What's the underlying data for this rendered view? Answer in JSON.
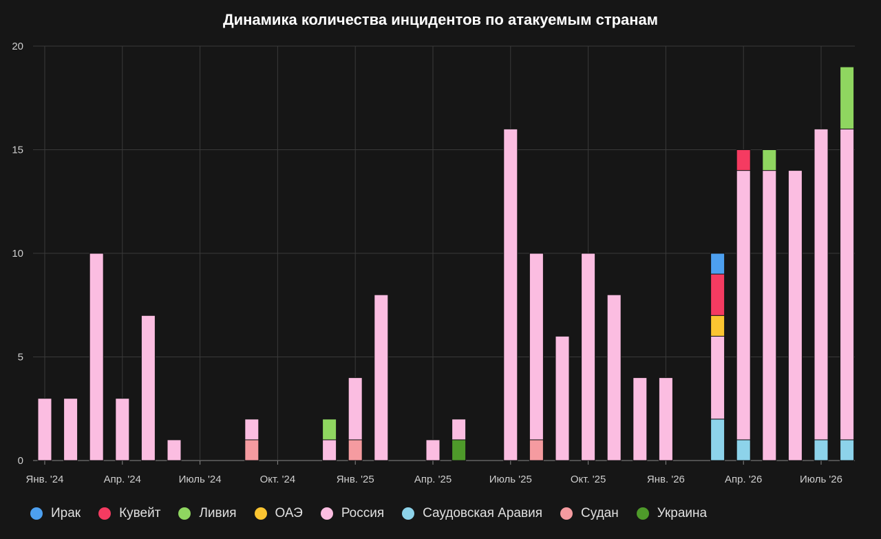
{
  "title": "Динамика количества инцидентов по атакуемым странам",
  "chart_data": {
    "type": "bar",
    "stacked": true,
    "title": "Динамика количества инцидентов по атакуемым странам",
    "xlabel": "",
    "ylabel": "",
    "ylim": [
      0,
      20
    ],
    "yticks": [
      0,
      5,
      10,
      15,
      20
    ],
    "grid": true,
    "legend_position": "bottom",
    "x_tick_labels": [
      {
        "label": "Янв. '24",
        "month": "2024-01"
      },
      {
        "label": "Апр. '24",
        "month": "2024-04"
      },
      {
        "label": "Июль '24",
        "month": "2024-07"
      },
      {
        "label": "Окт. '24",
        "month": "2024-10"
      },
      {
        "label": "Янв. '25",
        "month": "2025-01"
      },
      {
        "label": "Апр. '25",
        "month": "2025-04"
      },
      {
        "label": "Июль '25",
        "month": "2025-07"
      },
      {
        "label": "Окт. '25",
        "month": "2025-10"
      },
      {
        "label": "Янв. '26",
        "month": "2026-01"
      },
      {
        "label": "Апр. '26",
        "month": "2026-04"
      },
      {
        "label": "Июль '26",
        "month": "2026-07"
      }
    ],
    "categories": [
      "2024-01",
      "2024-02",
      "2024-03",
      "2024-04",
      "2024-05",
      "2024-06",
      "2024-07",
      "2024-08",
      "2024-09",
      "2024-10",
      "2024-11",
      "2024-12",
      "2025-01",
      "2025-02",
      "2025-03",
      "2025-04",
      "2025-05",
      "2025-06",
      "2025-07",
      "2025-08",
      "2025-09",
      "2025-10",
      "2025-11",
      "2025-12",
      "2026-01",
      "2026-02",
      "2026-03",
      "2026-04",
      "2026-05",
      "2026-06",
      "2026-07",
      "2026-08"
    ],
    "series": [
      {
        "name": "Саудовская Аравия",
        "color": "#8dd3ea",
        "values": [
          0,
          0,
          0,
          0,
          0,
          0,
          0,
          0,
          0,
          0,
          0,
          0,
          0,
          0,
          0,
          0,
          0,
          0,
          0,
          0,
          0,
          0,
          0,
          0,
          0,
          0,
          2,
          1,
          0,
          0,
          1,
          1
        ]
      },
      {
        "name": "Судан",
        "color": "#f59ba0",
        "values": [
          0,
          0,
          0,
          0,
          0,
          0,
          0,
          0,
          1,
          0,
          0,
          0,
          1,
          0,
          0,
          0,
          0,
          0,
          0,
          1,
          0,
          0,
          0,
          0,
          0,
          0,
          0,
          0,
          0,
          0,
          0,
          0
        ]
      },
      {
        "name": "Украина",
        "color": "#4e9a2a",
        "values": [
          0,
          0,
          0,
          0,
          0,
          0,
          0,
          0,
          0,
          0,
          0,
          0,
          0,
          0,
          0,
          0,
          1,
          0,
          0,
          0,
          0,
          0,
          0,
          0,
          0,
          0,
          0,
          0,
          0,
          0,
          0,
          0
        ]
      },
      {
        "name": "Россия",
        "color": "#fbbde1",
        "values": [
          3,
          3,
          10,
          3,
          7,
          1,
          0,
          0,
          1,
          0,
          0,
          1,
          3,
          8,
          0,
          1,
          1,
          0,
          16,
          9,
          6,
          10,
          8,
          4,
          4,
          0,
          4,
          13,
          14,
          14,
          15,
          15
        ]
      },
      {
        "name": "ОАЭ",
        "color": "#fbc531",
        "values": [
          0,
          0,
          0,
          0,
          0,
          0,
          0,
          0,
          0,
          0,
          0,
          0,
          0,
          0,
          0,
          0,
          0,
          0,
          0,
          0,
          0,
          0,
          0,
          0,
          0,
          0,
          1,
          0,
          0,
          0,
          0,
          0
        ]
      },
      {
        "name": "Ливия",
        "color": "#8fd660",
        "values": [
          0,
          0,
          0,
          0,
          0,
          0,
          0,
          0,
          0,
          0,
          0,
          1,
          0,
          0,
          0,
          0,
          0,
          0,
          0,
          0,
          0,
          0,
          0,
          0,
          0,
          0,
          0,
          0,
          1,
          0,
          0,
          3
        ]
      },
      {
        "name": "Кувейт",
        "color": "#f53b61",
        "values": [
          0,
          0,
          0,
          0,
          0,
          0,
          0,
          0,
          0,
          0,
          0,
          0,
          0,
          0,
          0,
          0,
          0,
          0,
          0,
          0,
          0,
          0,
          0,
          0,
          0,
          0,
          2,
          1,
          0,
          0,
          0,
          0
        ]
      },
      {
        "name": "Ирак",
        "color": "#4da0f0",
        "values": [
          0,
          0,
          0,
          0,
          0,
          0,
          0,
          0,
          0,
          0,
          0,
          0,
          0,
          0,
          0,
          0,
          0,
          0,
          0,
          0,
          0,
          0,
          0,
          0,
          0,
          0,
          1,
          0,
          0,
          0,
          0,
          0
        ]
      }
    ]
  },
  "legend": [
    {
      "label": "Ирак",
      "color": "#4da0f0"
    },
    {
      "label": "Кувейт",
      "color": "#f53b61"
    },
    {
      "label": "Ливия",
      "color": "#8fd660"
    },
    {
      "label": "ОАЭ",
      "color": "#fbc531"
    },
    {
      "label": "Россия",
      "color": "#fbbde1"
    },
    {
      "label": "Саудовская Аравия",
      "color": "#8dd3ea"
    },
    {
      "label": "Судан",
      "color": "#f59ba0"
    },
    {
      "label": "Украина",
      "color": "#4e9a2a"
    }
  ]
}
